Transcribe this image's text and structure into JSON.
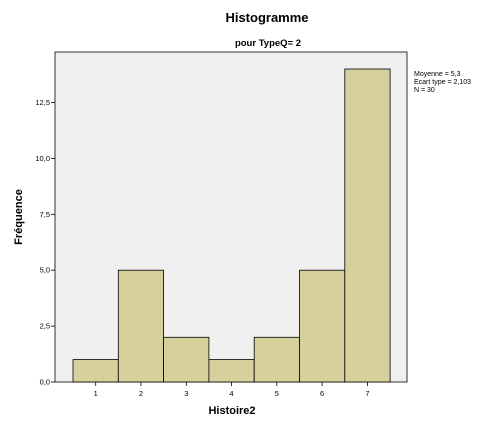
{
  "chart_data": {
    "type": "bar",
    "title": "Histogramme",
    "subtitle": "pour TypeQ= 2",
    "xlabel": "Histoire2",
    "ylabel": "Fréquence",
    "categories": [
      "1",
      "2",
      "3",
      "4",
      "5",
      "6",
      "7"
    ],
    "values": [
      1,
      5,
      2,
      1,
      2,
      5,
      14
    ],
    "ylim": [
      0,
      15
    ],
    "yticks": [
      "0,0",
      "2,5",
      "5,0",
      "7,5",
      "10,0",
      "12,5"
    ],
    "ytick_values": [
      0,
      2.5,
      5,
      7.5,
      10,
      12.5
    ],
    "grid": false,
    "bar_color": "#d6d19c",
    "plot_background": "#f0f0f0",
    "stats": [
      "Moyenne = 5,3",
      "Ecart type = 2,103",
      "N = 30"
    ]
  }
}
